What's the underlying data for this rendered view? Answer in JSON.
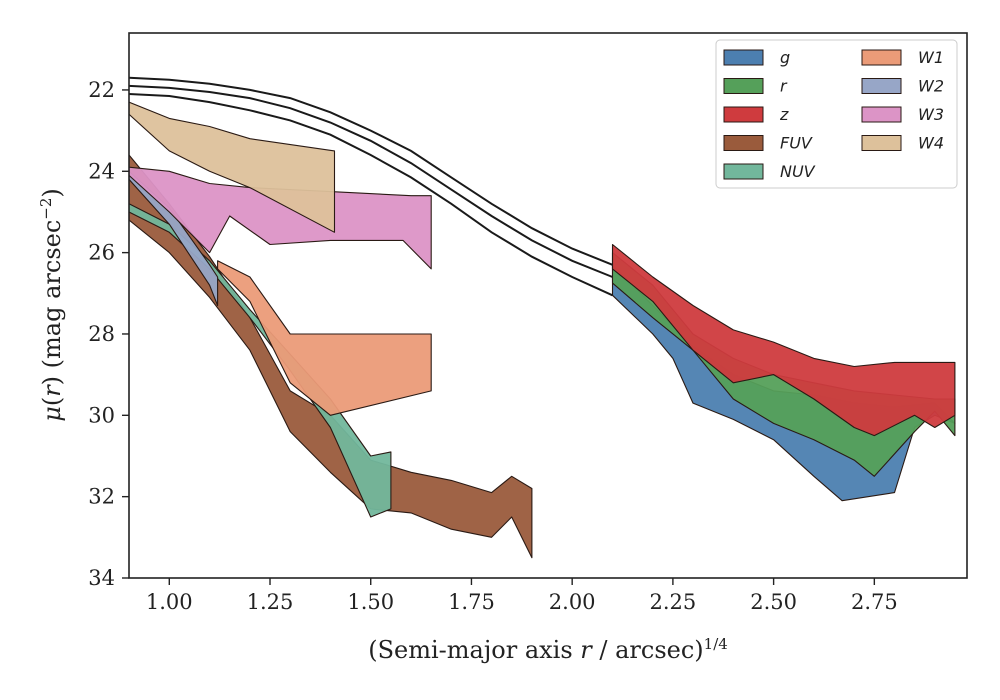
{
  "chart_data": {
    "type": "area",
    "xlabel": "(Semi-major axis r / arcsec)^{1/4}",
    "ylabel": "μ(r) (mag arcsec⁻²)",
    "xlim": [
      0.9,
      2.98
    ],
    "ylim": [
      34,
      20.6
    ],
    "y_inverted": true,
    "x_ticks": [
      1.0,
      1.25,
      1.5,
      1.75,
      2.0,
      2.25,
      2.5,
      2.75
    ],
    "x_tick_labels": [
      "1.00",
      "1.25",
      "1.50",
      "1.75",
      "2.00",
      "2.25",
      "2.50",
      "2.75"
    ],
    "y_ticks": [
      22,
      24,
      26,
      28,
      30,
      32,
      34
    ],
    "y_tick_labels": [
      "22",
      "24",
      "26",
      "28",
      "30",
      "32",
      "34"
    ],
    "grid": false,
    "legend_position": "top-right",
    "legend_columns": 2,
    "colors": {
      "g": "#4c7fb0",
      "r": "#55a05a",
      "z": "#cf3b3e",
      "FUV": "#9a5b3c",
      "NUV": "#72b79c",
      "W1": "#eb9b78",
      "W2": "#97a6c7",
      "W3": "#dc94c6",
      "W4": "#ddc19b"
    },
    "model_lines": [
      {
        "x": [
          0.9,
          1.0,
          1.1,
          1.2,
          1.3,
          1.4,
          1.5,
          1.6,
          1.7,
          1.8,
          1.9,
          2.0,
          2.1
        ],
        "y": [
          21.7,
          21.75,
          21.85,
          22.0,
          22.2,
          22.55,
          23.0,
          23.5,
          24.15,
          24.8,
          25.4,
          25.9,
          26.3
        ]
      },
      {
        "x": [
          0.9,
          1.0,
          1.1,
          1.2,
          1.3,
          1.4,
          1.5,
          1.6,
          1.7,
          1.8,
          1.9,
          2.0,
          2.1
        ],
        "y": [
          21.9,
          21.95,
          22.05,
          22.2,
          22.45,
          22.8,
          23.25,
          23.8,
          24.45,
          25.1,
          25.7,
          26.2,
          26.6
        ]
      },
      {
        "x": [
          0.9,
          1.0,
          1.1,
          1.2,
          1.3,
          1.4,
          1.5,
          1.6,
          1.7,
          1.8,
          1.9,
          2.0,
          2.1
        ],
        "y": [
          22.1,
          22.15,
          22.3,
          22.5,
          22.75,
          23.1,
          23.6,
          24.15,
          24.8,
          25.5,
          26.1,
          26.6,
          27.05
        ]
      }
    ],
    "series": [
      {
        "name": "g",
        "upper": [
          [
            2.1,
            26.3
          ],
          [
            2.2,
            27.3
          ],
          [
            2.3,
            28.3
          ],
          [
            2.4,
            29.0
          ],
          [
            2.5,
            29.4
          ],
          [
            2.6,
            29.5
          ],
          [
            2.7,
            29.7
          ],
          [
            2.8,
            29.8
          ],
          [
            2.9,
            29.7
          ],
          [
            2.95,
            30.2
          ]
        ],
        "lower": [
          [
            2.1,
            27.05
          ],
          [
            2.2,
            28.0
          ],
          [
            2.25,
            28.6
          ],
          [
            2.3,
            29.7
          ],
          [
            2.4,
            30.1
          ],
          [
            2.5,
            30.6
          ],
          [
            2.6,
            31.5
          ],
          [
            2.67,
            32.1
          ],
          [
            2.8,
            31.9
          ],
          [
            2.85,
            30.3
          ],
          [
            2.9,
            30.0
          ],
          [
            2.95,
            30.2
          ]
        ]
      },
      {
        "name": "r",
        "upper": [
          [
            2.1,
            26.0
          ],
          [
            2.2,
            26.8
          ],
          [
            2.3,
            28.0
          ],
          [
            2.4,
            28.6
          ],
          [
            2.5,
            29.0
          ],
          [
            2.6,
            29.2
          ],
          [
            2.7,
            29.4
          ],
          [
            2.8,
            29.5
          ],
          [
            2.9,
            29.6
          ],
          [
            2.95,
            29.6
          ]
        ],
        "lower": [
          [
            2.1,
            26.75
          ],
          [
            2.2,
            27.6
          ],
          [
            2.3,
            28.4
          ],
          [
            2.4,
            29.6
          ],
          [
            2.5,
            30.2
          ],
          [
            2.6,
            30.6
          ],
          [
            2.7,
            31.1
          ],
          [
            2.75,
            31.5
          ],
          [
            2.85,
            30.4
          ],
          [
            2.9,
            29.9
          ],
          [
            2.95,
            30.5
          ]
        ]
      },
      {
        "name": "z",
        "upper": [
          [
            2.1,
            25.8
          ],
          [
            2.2,
            26.6
          ],
          [
            2.3,
            27.3
          ],
          [
            2.4,
            27.9
          ],
          [
            2.5,
            28.2
          ],
          [
            2.6,
            28.6
          ],
          [
            2.7,
            28.8
          ],
          [
            2.8,
            28.7
          ],
          [
            2.9,
            28.7
          ],
          [
            2.95,
            28.7
          ]
        ],
        "lower": [
          [
            2.1,
            26.4
          ],
          [
            2.2,
            27.2
          ],
          [
            2.3,
            28.4
          ],
          [
            2.4,
            29.2
          ],
          [
            2.5,
            29.0
          ],
          [
            2.6,
            29.6
          ],
          [
            2.7,
            30.3
          ],
          [
            2.75,
            30.5
          ],
          [
            2.85,
            30.0
          ],
          [
            2.9,
            30.3
          ],
          [
            2.95,
            30.0
          ]
        ]
      },
      {
        "name": "FUV",
        "upper": [
          [
            0.9,
            23.6
          ],
          [
            1.0,
            24.8
          ],
          [
            1.1,
            26.1
          ],
          [
            1.2,
            27.6
          ],
          [
            1.3,
            29.4
          ],
          [
            1.4,
            30.0
          ],
          [
            1.5,
            31.1
          ],
          [
            1.6,
            31.4
          ],
          [
            1.7,
            31.6
          ],
          [
            1.8,
            31.9
          ],
          [
            1.85,
            31.5
          ],
          [
            1.9,
            31.8
          ]
        ],
        "lower": [
          [
            0.9,
            25.2
          ],
          [
            1.0,
            26.0
          ],
          [
            1.1,
            27.1
          ],
          [
            1.2,
            28.4
          ],
          [
            1.3,
            30.4
          ],
          [
            1.4,
            31.4
          ],
          [
            1.5,
            32.3
          ],
          [
            1.6,
            32.4
          ],
          [
            1.7,
            32.8
          ],
          [
            1.8,
            33.0
          ],
          [
            1.85,
            32.5
          ],
          [
            1.9,
            33.5
          ]
        ]
      },
      {
        "name": "NUV",
        "upper": [
          [
            0.9,
            24.8
          ],
          [
            1.0,
            25.3
          ],
          [
            1.1,
            26.2
          ],
          [
            1.2,
            27.4
          ],
          [
            1.3,
            28.5
          ],
          [
            1.4,
            29.6
          ],
          [
            1.5,
            31.0
          ],
          [
            1.55,
            30.9
          ]
        ],
        "lower": [
          [
            0.9,
            25.0
          ],
          [
            1.0,
            25.5
          ],
          [
            1.1,
            26.4
          ],
          [
            1.2,
            27.6
          ],
          [
            1.3,
            28.9
          ],
          [
            1.4,
            30.3
          ],
          [
            1.5,
            32.5
          ],
          [
            1.55,
            32.3
          ]
        ]
      },
      {
        "name": "W1",
        "upper": [
          [
            1.12,
            26.2
          ],
          [
            1.2,
            26.6
          ],
          [
            1.3,
            28.0
          ],
          [
            1.5,
            28.0
          ],
          [
            1.65,
            28.0
          ]
        ],
        "lower": [
          [
            1.12,
            26.4
          ],
          [
            1.2,
            27.2
          ],
          [
            1.3,
            29.2
          ],
          [
            1.4,
            30.0
          ],
          [
            1.65,
            29.4
          ]
        ]
      },
      {
        "name": "W2",
        "upper": [
          [
            0.9,
            24.0
          ],
          [
            1.0,
            24.9
          ],
          [
            1.1,
            26.3
          ],
          [
            1.12,
            26.6
          ]
        ],
        "lower": [
          [
            0.9,
            24.2
          ],
          [
            1.0,
            25.3
          ],
          [
            1.1,
            26.8
          ],
          [
            1.12,
            27.3
          ]
        ]
      },
      {
        "name": "W3",
        "upper": [
          [
            0.9,
            23.9
          ],
          [
            1.0,
            24.0
          ],
          [
            1.1,
            24.3
          ],
          [
            1.2,
            24.4
          ],
          [
            1.4,
            24.5
          ],
          [
            1.6,
            24.6
          ],
          [
            1.65,
            24.6
          ]
        ],
        "lower": [
          [
            0.9,
            24.1
          ],
          [
            1.0,
            25.0
          ],
          [
            1.1,
            26.0
          ],
          [
            1.15,
            25.1
          ],
          [
            1.25,
            25.8
          ],
          [
            1.4,
            25.7
          ],
          [
            1.58,
            25.7
          ],
          [
            1.65,
            26.4
          ]
        ]
      },
      {
        "name": "W4",
        "upper": [
          [
            0.9,
            22.3
          ],
          [
            1.0,
            22.7
          ],
          [
            1.1,
            22.9
          ],
          [
            1.2,
            23.2
          ],
          [
            1.41,
            23.5
          ]
        ],
        "lower": [
          [
            0.9,
            22.6
          ],
          [
            1.0,
            23.5
          ],
          [
            1.1,
            24.0
          ],
          [
            1.2,
            24.4
          ],
          [
            1.41,
            25.5
          ]
        ]
      }
    ]
  },
  "legend": {
    "col1": [
      {
        "key": "g",
        "label": "g"
      },
      {
        "key": "r",
        "label": "r"
      },
      {
        "key": "z",
        "label": "z"
      },
      {
        "key": "FUV",
        "label": "FUV"
      },
      {
        "key": "NUV",
        "label": "NUV"
      }
    ],
    "col2": [
      {
        "key": "W1",
        "label": "W1"
      },
      {
        "key": "W2",
        "label": "W2"
      },
      {
        "key": "W3",
        "label": "W3"
      },
      {
        "key": "W4",
        "label": "W4"
      }
    ]
  }
}
